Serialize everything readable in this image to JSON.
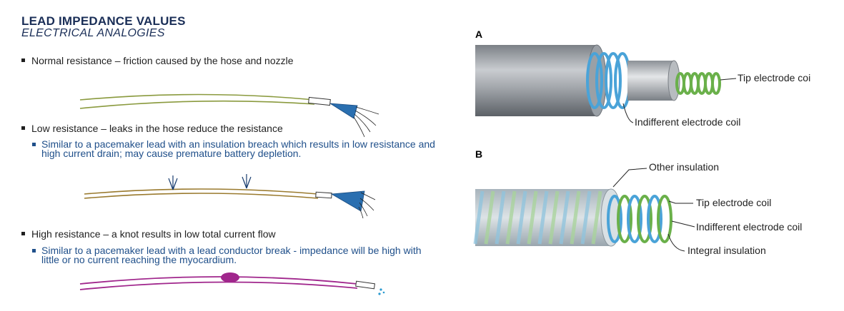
{
  "header": {
    "title": "LEAD IMPEDANCE VALUES",
    "subtitle": "ELECTRICAL ANALOGIES"
  },
  "bullets": [
    {
      "text": "Normal resistance – friction caused by the hose and nozzle"
    },
    {
      "text": "Low resistance – leaks in the hose reduce the resistance",
      "sub": "Similar to a pacemaker lead with an insulation breach which results in low resistance and high current drain; may cause premature battery depletion."
    },
    {
      "text": "High resistance – a knot results in low total current flow",
      "sub": "Similar to a pacemaker lead with a lead conductor break - impedance will be high with little or no current reaching the myocardium."
    }
  ],
  "figure": {
    "panel_a": {
      "label": "A",
      "callouts": [
        "Tip electrode coi",
        "Indifferent electrode coil"
      ]
    },
    "panel_b": {
      "label": "B",
      "callouts": [
        "Other insulation",
        "Tip electrode coil",
        "Indifferent electrode coil",
        "Integral insulation"
      ]
    }
  },
  "colors": {
    "title": "#1a2e57",
    "sub_text": "#1f4f8a",
    "hose_normal": "#8a9a3e",
    "hose_low": "#9a7a2e",
    "hose_high": "#a0268c",
    "water": "#2a6fb0",
    "coil_blue": "#4aa3d8",
    "coil_green": "#6ab04a"
  }
}
